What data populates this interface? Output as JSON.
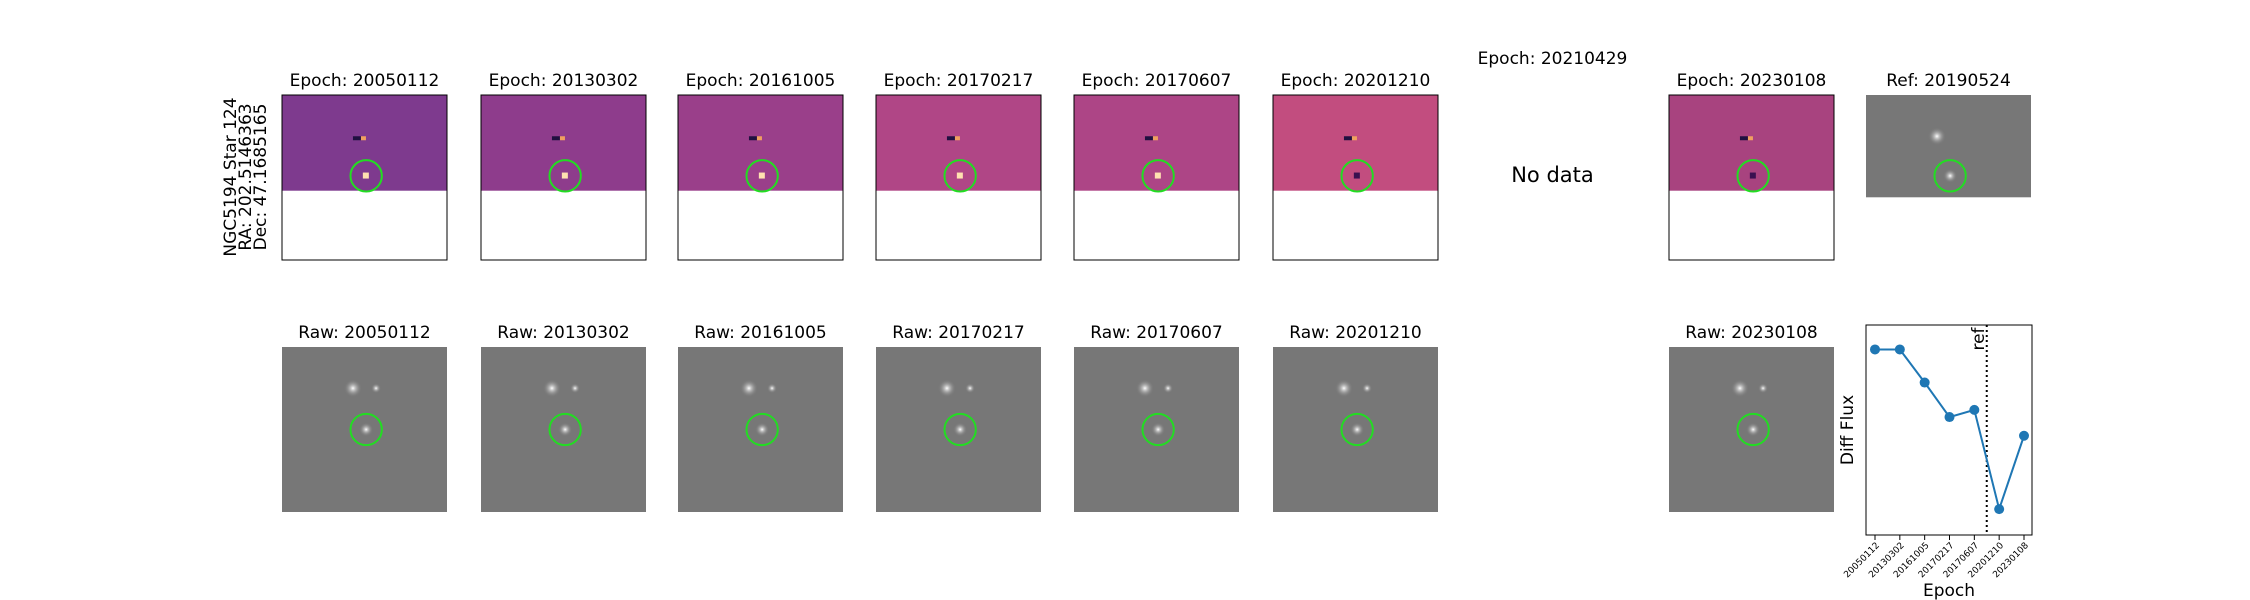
{
  "label": {
    "lines": [
      "NGC5194 Star 124",
      "RA: 202.5146363",
      "Dec: 47.1685165"
    ]
  },
  "diff_titles": [
    "Epoch: 20050112",
    "Epoch: 20130302",
    "Epoch: 20161005",
    "Epoch: 20170217",
    "Epoch: 20170607",
    "Epoch: 20201210"
  ],
  "no_data_panel": {
    "title": "Epoch: 20210429",
    "message": "No data"
  },
  "last_diff_title": "Epoch: 20230108",
  "ref_title": "Ref: 20190524",
  "raw_titles": [
    "Raw: 20050112",
    "Raw: 20130302",
    "Raw: 20161005",
    "Raw: 20170217",
    "Raw: 20170607",
    "Raw: 20201210"
  ],
  "last_raw_title": "Raw: 20230108",
  "chart_data": {
    "type": "line",
    "ylabel": "Diff Flux",
    "xlabel": "Epoch",
    "categories": [
      "20050112",
      "20130302",
      "20161005",
      "20170217",
      "20170607",
      "20201210",
      "20230108"
    ],
    "values": [
      129,
      129,
      106,
      82,
      87,
      18,
      69
    ],
    "color": "#1f77b4",
    "ylim": [
      0,
      146
    ],
    "ref_line": {
      "label": "ref",
      "x": 4.5
    }
  }
}
